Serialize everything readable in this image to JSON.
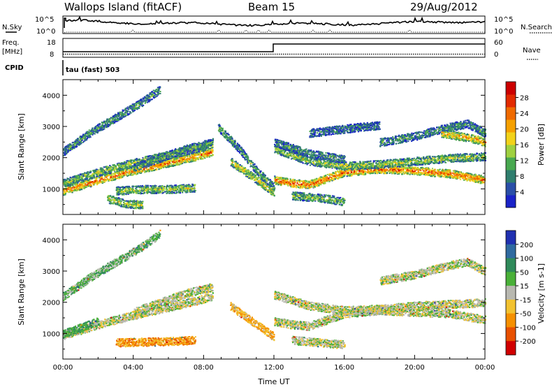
{
  "header": {
    "station": "Wallops Island (fitACF)",
    "beam": "Beam 15",
    "date": "29/Aug/2012"
  },
  "top_panels": {
    "nsky_label": "N.Sky",
    "nsearch_label": "N.Search",
    "noise_ticks": [
      "10^5",
      "10^0"
    ],
    "freq_label": "Freq.",
    "freq_unit": "[MHz]",
    "freq_ticks": [
      "18",
      "8"
    ],
    "nave_label": "Nave",
    "nave_ticks": [
      "60",
      "0"
    ],
    "cpid_label": "CPID",
    "cpid_value": "tau (fast) 503"
  },
  "chart_data": [
    {
      "type": "heatmap",
      "name": "power",
      "ylabel": "Slant Range [km]",
      "ylim": [
        180,
        4500
      ],
      "xlim": [
        0,
        24
      ],
      "y_ticks": [
        1000,
        2000,
        3000,
        4000
      ],
      "colorbar_label": "Power [dB]",
      "colorbar_ticks": [
        "4",
        "8",
        "12",
        "16",
        "20",
        "24",
        "28"
      ],
      "colorbar_colors": [
        "#1a23c8",
        "#2a4fa8",
        "#2f7e6e",
        "#48a850",
        "#9fd040",
        "#f2d21a",
        "#f5a000",
        "#ef6a00",
        "#e22a00",
        "#cc0000"
      ],
      "bands": [
        {
          "x": [
            0,
            2,
            4,
            6,
            7.5,
            8.5
          ],
          "y": [
            950,
            1300,
            1600,
            1850,
            2050,
            2200
          ],
          "level": 0.75
        },
        {
          "x": [
            0,
            2,
            4,
            6,
            7.5,
            8.5
          ],
          "y": [
            950,
            1300,
            1600,
            1850,
            2050,
            2200
          ],
          "level": 0.45,
          "offset": 250
        },
        {
          "x": [
            0,
            1.5,
            3,
            4.5,
            5.5
          ],
          "y": [
            2200,
            2800,
            3300,
            3800,
            4200
          ],
          "level": 0.3
        },
        {
          "x": [
            4,
            5.5,
            7,
            8.5
          ],
          "y": [
            1700,
            2000,
            2300,
            2500
          ],
          "level": 0.35
        },
        {
          "x": [
            3,
            4.5,
            6,
            7.5
          ],
          "y": [
            950,
            1000,
            1000,
            1050
          ],
          "level": 0.45
        },
        {
          "x": [
            2.5,
            3.5,
            4.5
          ],
          "y": [
            700,
            550,
            500
          ],
          "level": 0.5
        },
        {
          "x": [
            8.8,
            10,
            11,
            12
          ],
          "y": [
            3000,
            2300,
            1600,
            1050
          ],
          "level": 0.35
        },
        {
          "x": [
            9.5,
            10.5,
            11.5,
            12
          ],
          "y": [
            1900,
            1500,
            1100,
            900
          ],
          "level": 0.55
        },
        {
          "x": [
            12,
            13,
            14,
            15,
            16,
            18,
            20,
            22,
            24
          ],
          "y": [
            1300,
            1200,
            1150,
            1350,
            1550,
            1650,
            1600,
            1500,
            1300
          ],
          "level": 0.8
        },
        {
          "x": [
            12,
            14,
            16,
            18,
            20,
            22,
            24
          ],
          "y": [
            2300,
            1900,
            1750,
            1800,
            1900,
            2000,
            2050
          ],
          "level": 0.45
        },
        {
          "x": [
            12,
            14,
            16
          ],
          "y": [
            2500,
            2150,
            1950
          ],
          "level": 0.3
        },
        {
          "x": [
            18,
            20,
            22,
            23,
            24
          ],
          "y": [
            2500,
            2700,
            3000,
            3100,
            2800
          ],
          "level": 0.3
        },
        {
          "x": [
            21.5,
            22.5,
            23.5,
            24
          ],
          "y": [
            2800,
            2700,
            2600,
            2500
          ],
          "level": 0.65
        },
        {
          "x": [
            13,
            14,
            15,
            16
          ],
          "y": [
            800,
            750,
            700,
            600
          ],
          "level": 0.4
        },
        {
          "x": [
            14,
            15.5,
            17,
            18
          ],
          "y": [
            2800,
            2900,
            3000,
            3050
          ],
          "level": 0.25
        }
      ]
    },
    {
      "type": "heatmap",
      "name": "velocity",
      "ylabel": "Slant Range [km]",
      "xlabel": "Time UT",
      "ylim": [
        180,
        4500
      ],
      "xlim": [
        0,
        24
      ],
      "y_ticks": [
        1000,
        2000,
        3000,
        4000
      ],
      "x_ticks": [
        "00:00",
        "04:00",
        "08:00",
        "12:00",
        "16:00",
        "20:00",
        "00:00"
      ],
      "colorbar_label": "Velocity [m s-1]",
      "colorbar_ticks": [
        "200",
        "100",
        "50",
        "15",
        "-15",
        "-50",
        "-100",
        "-200"
      ],
      "colorbar_colors": [
        "#2030b0",
        "#2f6aa0",
        "#2f8a5a",
        "#4ab038",
        "#b8b8b0",
        "#f2c230",
        "#f59000",
        "#e85000",
        "#d10000"
      ],
      "bands": [
        {
          "x": [
            0,
            2,
            4,
            6,
            7.5,
            8.5
          ],
          "y": [
            950,
            1300,
            1600,
            1850,
            2050,
            2200
          ],
          "level": 0.5
        },
        {
          "x": [
            0,
            1.5,
            3,
            4.5,
            5.5
          ],
          "y": [
            2200,
            2800,
            3300,
            3800,
            4200
          ],
          "level": 0.6
        },
        {
          "x": [
            4,
            5.5,
            7,
            8.5
          ],
          "y": [
            1700,
            2000,
            2300,
            2500
          ],
          "level": 0.5
        },
        {
          "x": [
            3,
            4.5,
            6,
            7.5
          ],
          "y": [
            720,
            740,
            760,
            800
          ],
          "level": 0.3
        },
        {
          "x": [
            9.5,
            10.5,
            11.5,
            12
          ],
          "y": [
            1900,
            1500,
            1100,
            900
          ],
          "level": 0.35
        },
        {
          "x": [
            12,
            13,
            14,
            15,
            16,
            18,
            20,
            22,
            24
          ],
          "y": [
            1400,
            1300,
            1250,
            1450,
            1650,
            1750,
            1700,
            1650,
            1450
          ],
          "level": 0.5
        },
        {
          "x": [
            12,
            14,
            16,
            18,
            20,
            22,
            24
          ],
          "y": [
            2250,
            1900,
            1750,
            1800,
            1900,
            1950,
            2000
          ],
          "level": 0.5
        },
        {
          "x": [
            18,
            20,
            22,
            23,
            24
          ],
          "y": [
            2700,
            2900,
            3200,
            3300,
            3000
          ],
          "level": 0.5
        },
        {
          "x": [
            13,
            14,
            15,
            16
          ],
          "y": [
            800,
            750,
            700,
            650
          ],
          "level": 0.5
        },
        {
          "x": [
            0,
            1,
            2
          ],
          "y": [
            1000,
            1200,
            1400
          ],
          "level": 0.65
        }
      ]
    }
  ]
}
